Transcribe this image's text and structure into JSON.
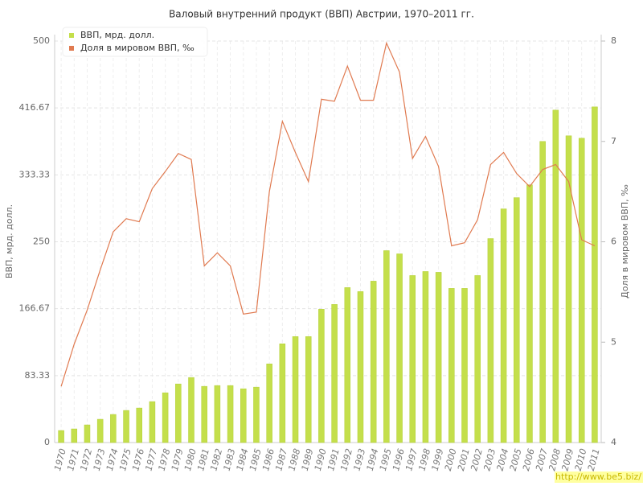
{
  "chart_data": {
    "type": "combo",
    "title": "Валовый внутренний продукт (ВВП) Австрии, 1970–2011 гг.",
    "categories": [
      "1970",
      "1971",
      "1972",
      "1973",
      "1974",
      "1975",
      "1976",
      "1977",
      "1978",
      "1979",
      "1980",
      "1981",
      "1982",
      "1983",
      "1984",
      "1985",
      "1986",
      "1987",
      "1988",
      "1989",
      "1990",
      "1991",
      "1992",
      "1993",
      "1994",
      "1995",
      "1996",
      "1997",
      "1998",
      "1999",
      "2000",
      "2001",
      "2002",
      "2003",
      "2004",
      "2005",
      "2006",
      "2007",
      "2008",
      "2009",
      "2010",
      "2011"
    ],
    "series": [
      {
        "name": "ВВП, мрд. долл.",
        "type": "bar",
        "color": "#c4df4b",
        "values": [
          15,
          17,
          22,
          29,
          35,
          40,
          43,
          51,
          62,
          73,
          81,
          70,
          71,
          71,
          67,
          69,
          98,
          123,
          132,
          132,
          166,
          172,
          193,
          188,
          201,
          239,
          235,
          208,
          213,
          212,
          192,
          192,
          208,
          254,
          291,
          305,
          321,
          375,
          414,
          382,
          379,
          418
        ]
      },
      {
        "name": "Доля в мировом ВВП, ‰",
        "type": "line",
        "axis": "y2",
        "color": "#e07a50",
        "values": [
          4.56,
          4.98,
          5.32,
          5.72,
          6.1,
          6.23,
          6.2,
          6.53,
          6.7,
          6.88,
          6.82,
          5.76,
          5.89,
          5.76,
          5.28,
          5.3,
          6.5,
          7.2,
          6.89,
          6.6,
          7.42,
          7.4,
          7.75,
          7.41,
          7.41,
          7.98,
          7.69,
          6.83,
          7.05,
          6.75,
          5.96,
          5.99,
          6.22,
          6.77,
          6.89,
          6.68,
          6.55,
          6.72,
          6.77,
          6.6,
          6.02,
          5.96
        ]
      }
    ],
    "ylabel": "ВВП, мрд. долл.",
    "y2label": "Доля в мировом ВВП, ‰",
    "ylim": [
      0,
      500
    ],
    "yticks": [
      0,
      83.33,
      166.67,
      250,
      333.33,
      416.67,
      500
    ],
    "y2lim": [
      4,
      8
    ],
    "y2ticks": [
      4,
      5,
      6,
      7,
      8
    ],
    "grid": true,
    "legend": "top-left",
    "watermark": "http://www.be5.biz/"
  }
}
